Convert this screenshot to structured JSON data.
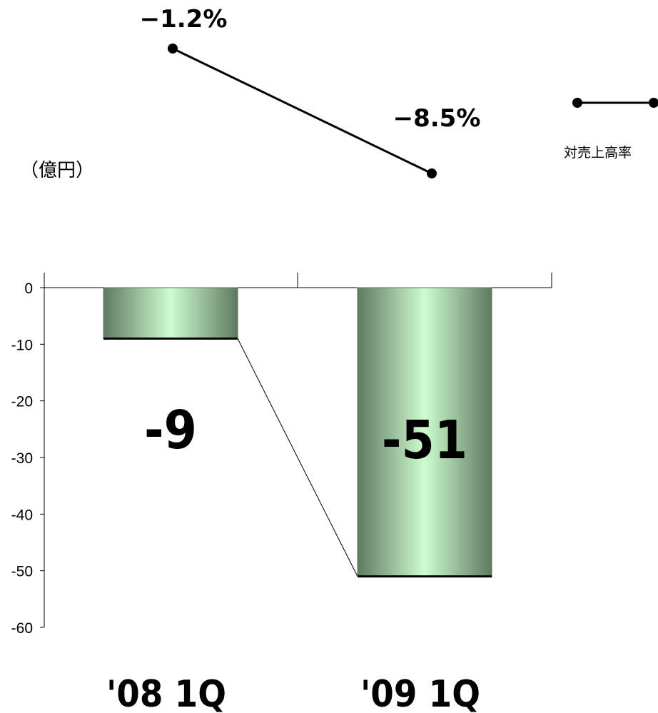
{
  "chart_data": {
    "type": "bar",
    "categories": [
      "'08 1Q",
      "'09 1Q"
    ],
    "values": [
      -9,
      -51
    ],
    "value_labels": [
      "-9",
      "-51"
    ],
    "ylabel": "（億円）",
    "ylim": [
      -60,
      0
    ],
    "yticks": [
      0,
      -10,
      -20,
      -30,
      -40,
      -50,
      -60
    ],
    "ytick_labels": [
      "0",
      "-10",
      "-20",
      "-30",
      "-40",
      "-50",
      "-60"
    ],
    "grid": false,
    "bar_color": "#c8f7c8",
    "bar_edge_color": "#5c7a5c",
    "ratio_series": {
      "name": "対売上高率",
      "type": "line",
      "values": [
        -1.2,
        -8.5
      ],
      "labels": [
        "−1.2%",
        "−8.5%"
      ]
    },
    "legend": {
      "placement": "top-right",
      "entries": [
        "対売上高率"
      ]
    }
  }
}
